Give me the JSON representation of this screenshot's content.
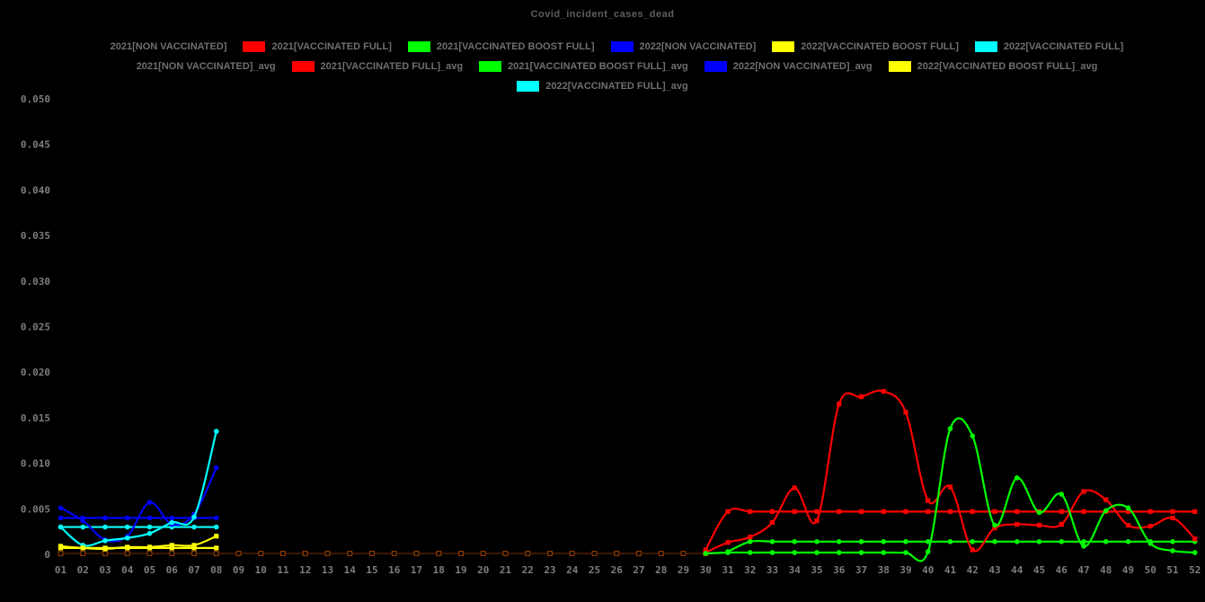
{
  "colors": {
    "background": "#000000",
    "title_text": "#5f5f5f",
    "legend_text": "#6f6f6f",
    "axis_text": "#7d7d7d",
    "red": "#ff0000",
    "green": "#00ff00",
    "blue": "#0000ff",
    "yellow": "#ffff00",
    "cyan": "#00ffff",
    "black_series": "#000000",
    "baseline_dim": "#5a2200",
    "baseline_marker": "#8a3a00"
  },
  "legend": {
    "rows": [
      [
        {
          "label": "2021[NON VACCINATED]",
          "color": "#000000"
        },
        {
          "label": "2021[VACCINATED FULL]",
          "color": "#ff0000"
        },
        {
          "label": "2021[VACCINATED BOOST FULL]",
          "color": "#00ff00"
        },
        {
          "label": "2022[NON VACCINATED]",
          "color": "#0000ff"
        },
        {
          "label": "2022[VACCINATED BOOST FULL]",
          "color": "#ffff00"
        },
        {
          "label": "2022[VACCINATED FULL]",
          "color": "#00ffff"
        }
      ],
      [
        {
          "label": "2021[NON VACCINATED]_avg",
          "color": "#000000"
        },
        {
          "label": "2021[VACCINATED FULL]_avg",
          "color": "#ff0000"
        },
        {
          "label": "2021[VACCINATED BOOST FULL]_avg",
          "color": "#00ff00"
        },
        {
          "label": "2022[NON VACCINATED]_avg",
          "color": "#0000ff"
        },
        {
          "label": "2022[VACCINATED BOOST FULL]_avg",
          "color": "#ffff00"
        }
      ],
      [
        {
          "label": "2022[VACCINATED FULL]_avg",
          "color": "#00ffff"
        }
      ]
    ]
  },
  "chart_data": {
    "type": "line",
    "title": "Covid_incident_cases_dead",
    "xlabel": "",
    "ylabel": "",
    "ylim": [
      0,
      0.05
    ],
    "grid": false,
    "legend_position": "top",
    "yticks": [
      {
        "label": "0",
        "value": 0
      },
      {
        "label": "0.005",
        "value": 0.005
      },
      {
        "label": "0.010",
        "value": 0.01
      },
      {
        "label": "0.015",
        "value": 0.015
      },
      {
        "label": "0.020",
        "value": 0.02
      },
      {
        "label": "0.025",
        "value": 0.025
      },
      {
        "label": "0.030",
        "value": 0.03
      },
      {
        "label": "0.035",
        "value": 0.035
      },
      {
        "label": "0.040",
        "value": 0.04
      },
      {
        "label": "0.045",
        "value": 0.045
      },
      {
        "label": "0.050",
        "value": 0.05
      }
    ],
    "xticks": [
      "01",
      "02",
      "03",
      "04",
      "05",
      "06",
      "07",
      "08",
      "09",
      "10",
      "11",
      "12",
      "13",
      "14",
      "15",
      "16",
      "17",
      "18",
      "19",
      "20",
      "21",
      "22",
      "23",
      "24",
      "25",
      "26",
      "27",
      "28",
      "29",
      "30",
      "31",
      "32",
      "33",
      "34",
      "35",
      "36",
      "37",
      "38",
      "39",
      "40",
      "41",
      "42",
      "43",
      "44",
      "45",
      "46",
      "47",
      "48",
      "49",
      "50",
      "51",
      "52"
    ],
    "series": [
      {
        "name": "2021[NON VACCINATED]",
        "color": "#000000",
        "display_color": "#5a2200",
        "marker": "open-square",
        "marker_color": "#8a3a00",
        "week_start": 1,
        "values": [
          0.0001,
          0.0001,
          0.0001,
          0.0001,
          0.0001,
          0.0001,
          0.0001,
          0.0001,
          0.0001,
          0.0001,
          0.0001,
          0.0001,
          0.0001,
          0.0001,
          0.0001,
          0.0001,
          0.0001,
          0.0001,
          0.0001,
          0.0001,
          0.0001,
          0.0001,
          0.0001,
          0.0001,
          0.0001,
          0.0001,
          0.0001,
          0.0001,
          0.0001,
          0.0001
        ]
      },
      {
        "name": "2021[VACCINATED FULL]_avg",
        "color": "#ff0000",
        "marker": "square",
        "week_start": 30,
        "values": [
          0.0005,
          0.0047,
          0.0047,
          0.0047,
          0.0047,
          0.0047,
          0.0047,
          0.0047,
          0.0047,
          0.0047,
          0.0047,
          0.0047,
          0.0047,
          0.0047,
          0.0047,
          0.0047,
          0.0047,
          0.0047,
          0.0047,
          0.0047,
          0.0047,
          0.0047,
          0.0047
        ]
      },
      {
        "name": "2021[VACCINATED BOOST FULL]_avg",
        "color": "#00ff00",
        "marker": "circle",
        "week_start": 31,
        "values": [
          0.0003,
          0.0014,
          0.0014,
          0.0014,
          0.0014,
          0.0014,
          0.0014,
          0.0014,
          0.0014,
          0.0014,
          0.0014,
          0.0014,
          0.0014,
          0.0014,
          0.0014,
          0.0014,
          0.0014,
          0.0014,
          0.0014,
          0.0014,
          0.0014,
          0.0014
        ]
      },
      {
        "name": "2022[NON VACCINATED]_avg",
        "color": "#0000ff",
        "marker": "circle",
        "week_start": 1,
        "values": [
          0.004,
          0.004,
          0.004,
          0.004,
          0.004,
          0.004,
          0.004,
          0.004
        ]
      },
      {
        "name": "2022[VACCINATED FULL]_avg",
        "color": "#00ffff",
        "marker": "circle",
        "week_start": 1,
        "values": [
          0.003,
          0.003,
          0.003,
          0.003,
          0.003,
          0.003,
          0.003,
          0.003
        ]
      },
      {
        "name": "2022[VACCINATED BOOST FULL]_avg",
        "color": "#ffff00",
        "marker": "square",
        "week_start": 1,
        "values": [
          0.0007,
          0.0007,
          0.0007,
          0.0007,
          0.0007,
          0.0007,
          0.0007,
          0.0007
        ]
      },
      {
        "name": "2021[VACCINATED FULL]",
        "color": "#ff0000",
        "marker": "square",
        "week_start": 30,
        "values": [
          0.0002,
          0.0013,
          0.0019,
          0.0035,
          0.0073,
          0.0037,
          0.0165,
          0.0173,
          0.0179,
          0.0156,
          0.0059,
          0.0074,
          0.0005,
          0.0029,
          0.0033,
          0.0032,
          0.0033,
          0.0069,
          0.006,
          0.0032,
          0.0031,
          0.004,
          0.0017
        ]
      },
      {
        "name": "2021[VACCINATED BOOST FULL]",
        "color": "#00ff00",
        "marker": "circle",
        "week_start": 30,
        "values": [
          0.0001,
          0.0002,
          0.0002,
          0.0002,
          0.0002,
          0.0002,
          0.0002,
          0.0002,
          0.0002,
          0.0002,
          0.0003,
          0.0138,
          0.013,
          0.0032,
          0.0084,
          0.0046,
          0.0066,
          0.0009,
          0.0048,
          0.0051,
          0.0012,
          0.0004,
          0.0002
        ]
      },
      {
        "name": "2022[NON VACCINATED]",
        "color": "#0000ff",
        "marker": "circle",
        "week_start": 1,
        "values": [
          0.0051,
          0.0037,
          0.0016,
          0.002,
          0.0057,
          0.0033,
          0.0044,
          0.0095
        ]
      },
      {
        "name": "2022[VACCINATED FULL]",
        "color": "#00ffff",
        "marker": "circle",
        "week_start": 1,
        "values": [
          0.003,
          0.001,
          0.0015,
          0.0018,
          0.0023,
          0.0035,
          0.0041,
          0.0135
        ]
      },
      {
        "name": "2022[VACCINATED BOOST FULL]",
        "color": "#ffff00",
        "marker": "square",
        "week_start": 1,
        "values": [
          0.0009,
          0.0007,
          0.0006,
          0.0008,
          0.0008,
          0.001,
          0.001,
          0.002
        ]
      }
    ]
  }
}
